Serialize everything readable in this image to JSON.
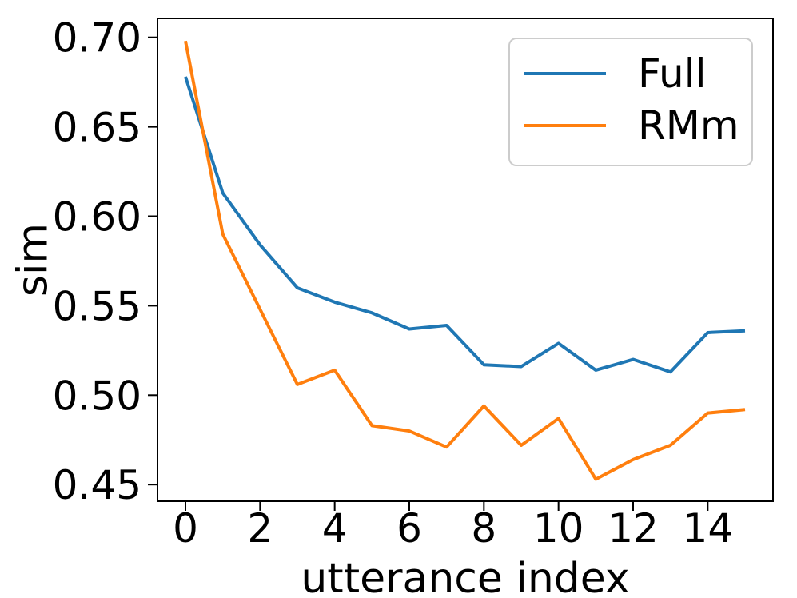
{
  "chart_data": {
    "type": "line",
    "title": "",
    "xlabel": "utterance index",
    "ylabel": "sim",
    "x": [
      0,
      1,
      2,
      3,
      4,
      5,
      6,
      7,
      8,
      9,
      10,
      11,
      12,
      13,
      14,
      15
    ],
    "series": [
      {
        "name": "Full",
        "color": "#1f77b4",
        "values": [
          0.678,
          0.613,
          0.584,
          0.56,
          0.552,
          0.546,
          0.537,
          0.539,
          0.517,
          0.516,
          0.529,
          0.514,
          0.52,
          0.513,
          0.535,
          0.536
        ]
      },
      {
        "name": "RMm",
        "color": "#ff7f0e",
        "values": [
          0.698,
          0.59,
          0.548,
          0.506,
          0.514,
          0.483,
          0.48,
          0.471,
          0.494,
          0.472,
          0.487,
          0.453,
          0.464,
          0.472,
          0.49,
          0.492
        ]
      }
    ],
    "xticks": [
      0,
      2,
      4,
      6,
      8,
      10,
      12,
      14
    ],
    "yticks": [
      0.45,
      0.5,
      0.55,
      0.6,
      0.65,
      0.7
    ],
    "ytick_labels": [
      "0.45",
      "0.50",
      "0.55",
      "0.60",
      "0.65",
      "0.70"
    ],
    "xlim": [
      -0.75,
      15.75
    ],
    "ylim": [
      0.4407,
      0.7106
    ],
    "grid": false,
    "legend_position": "upper right",
    "axis_color": "#000000"
  }
}
